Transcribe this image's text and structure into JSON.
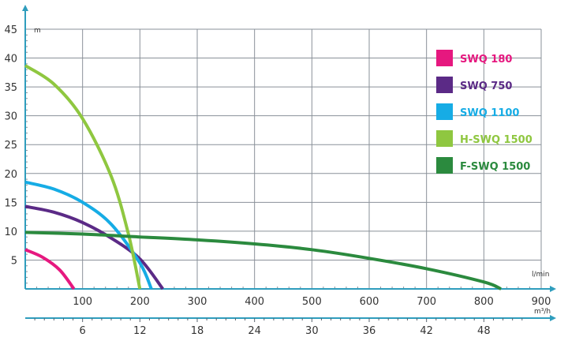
{
  "chart_data": {
    "type": "line",
    "y_unit": "m",
    "x_unit": "l/min",
    "x2_unit": "m³/h",
    "xlim": [
      0,
      900
    ],
    "ylim": [
      0,
      45
    ],
    "x_ticks": [
      "100",
      "200",
      "300",
      "400",
      "500",
      "600",
      "700",
      "800",
      "900"
    ],
    "y_ticks": [
      "45",
      "40",
      "35",
      "30",
      "25",
      "20",
      "15",
      "10",
      "5"
    ],
    "x2_ticks": [
      "6",
      "12",
      "18",
      "24",
      "30",
      "36",
      "42",
      "48"
    ],
    "grid": true,
    "legend_position": "right",
    "series": [
      {
        "name": "SWQ 180",
        "color": "#e6187f",
        "x": [
          0,
          30,
          60,
          85
        ],
        "y": [
          6.8,
          5.5,
          3.3,
          0
        ]
      },
      {
        "name": "SWQ 750",
        "color": "#5b2a86",
        "x": [
          0,
          50,
          100,
          150,
          200,
          240
        ],
        "y": [
          14.3,
          13.3,
          11.5,
          8.8,
          5.2,
          0
        ]
      },
      {
        "name": "SWQ 1100",
        "color": "#16ace5",
        "x": [
          0,
          50,
          100,
          150,
          200,
          220
        ],
        "y": [
          18.5,
          17.3,
          15.0,
          11.2,
          4.5,
          0
        ]
      },
      {
        "name": "H-SWQ 1500",
        "color": "#8fc740",
        "x": [
          0,
          50,
          100,
          150,
          180,
          200
        ],
        "y": [
          38.7,
          35.5,
          29.5,
          19.5,
          9.5,
          0
        ]
      },
      {
        "name": "F-SWQ 1500",
        "color": "#2b8a3e",
        "x": [
          0,
          100,
          200,
          300,
          400,
          500,
          600,
          700,
          800,
          830
        ],
        "y": [
          9.8,
          9.5,
          9.0,
          8.5,
          7.8,
          6.8,
          5.3,
          3.5,
          1.2,
          0
        ]
      }
    ]
  }
}
